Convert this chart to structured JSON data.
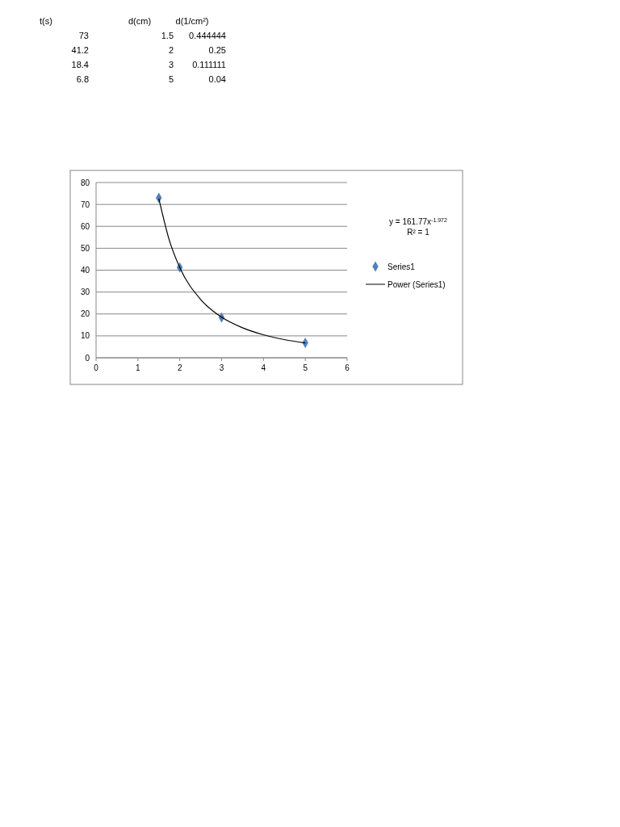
{
  "chart_data": {
    "type": "scatter",
    "marker": "diamond",
    "grid": "y",
    "legend": "right",
    "xlim": [
      0,
      6
    ],
    "xticks": [
      0,
      1,
      2,
      3,
      4,
      5,
      6
    ],
    "ylim": [
      0,
      80
    ],
    "yticks": [
      0,
      10,
      20,
      30,
      40,
      50,
      60,
      70,
      80
    ],
    "x": [
      1.5,
      2,
      3,
      5
    ],
    "series": [
      {
        "name": "Series1",
        "color": "#4f81bd",
        "values": [
          73,
          41.2,
          18.4,
          6.8
        ]
      },
      {
        "name": "Power (Series1)",
        "type": "line",
        "marker": "none",
        "color": "#000000",
        "x": [
          1.5,
          1.75,
          2,
          2.5,
          3,
          3.5,
          4,
          4.5,
          5
        ],
        "values": [
          72.7,
          53.7,
          41.2,
          26.6,
          18.5,
          13.7,
          10.5,
          8.3,
          6.8
        ]
      }
    ],
    "annotations": [
      "t(s)",
      "d(cm)",
      "d(1/cm²)",
      "73",
      "1.5",
      "0.444444",
      "41.2",
      "2",
      "0.25",
      "18.4",
      "3",
      "0.111111",
      "6.8",
      "5",
      "0.04",
      "y = 161.77x$^{-1.972}$",
      "R² = 1"
    ]
  }
}
